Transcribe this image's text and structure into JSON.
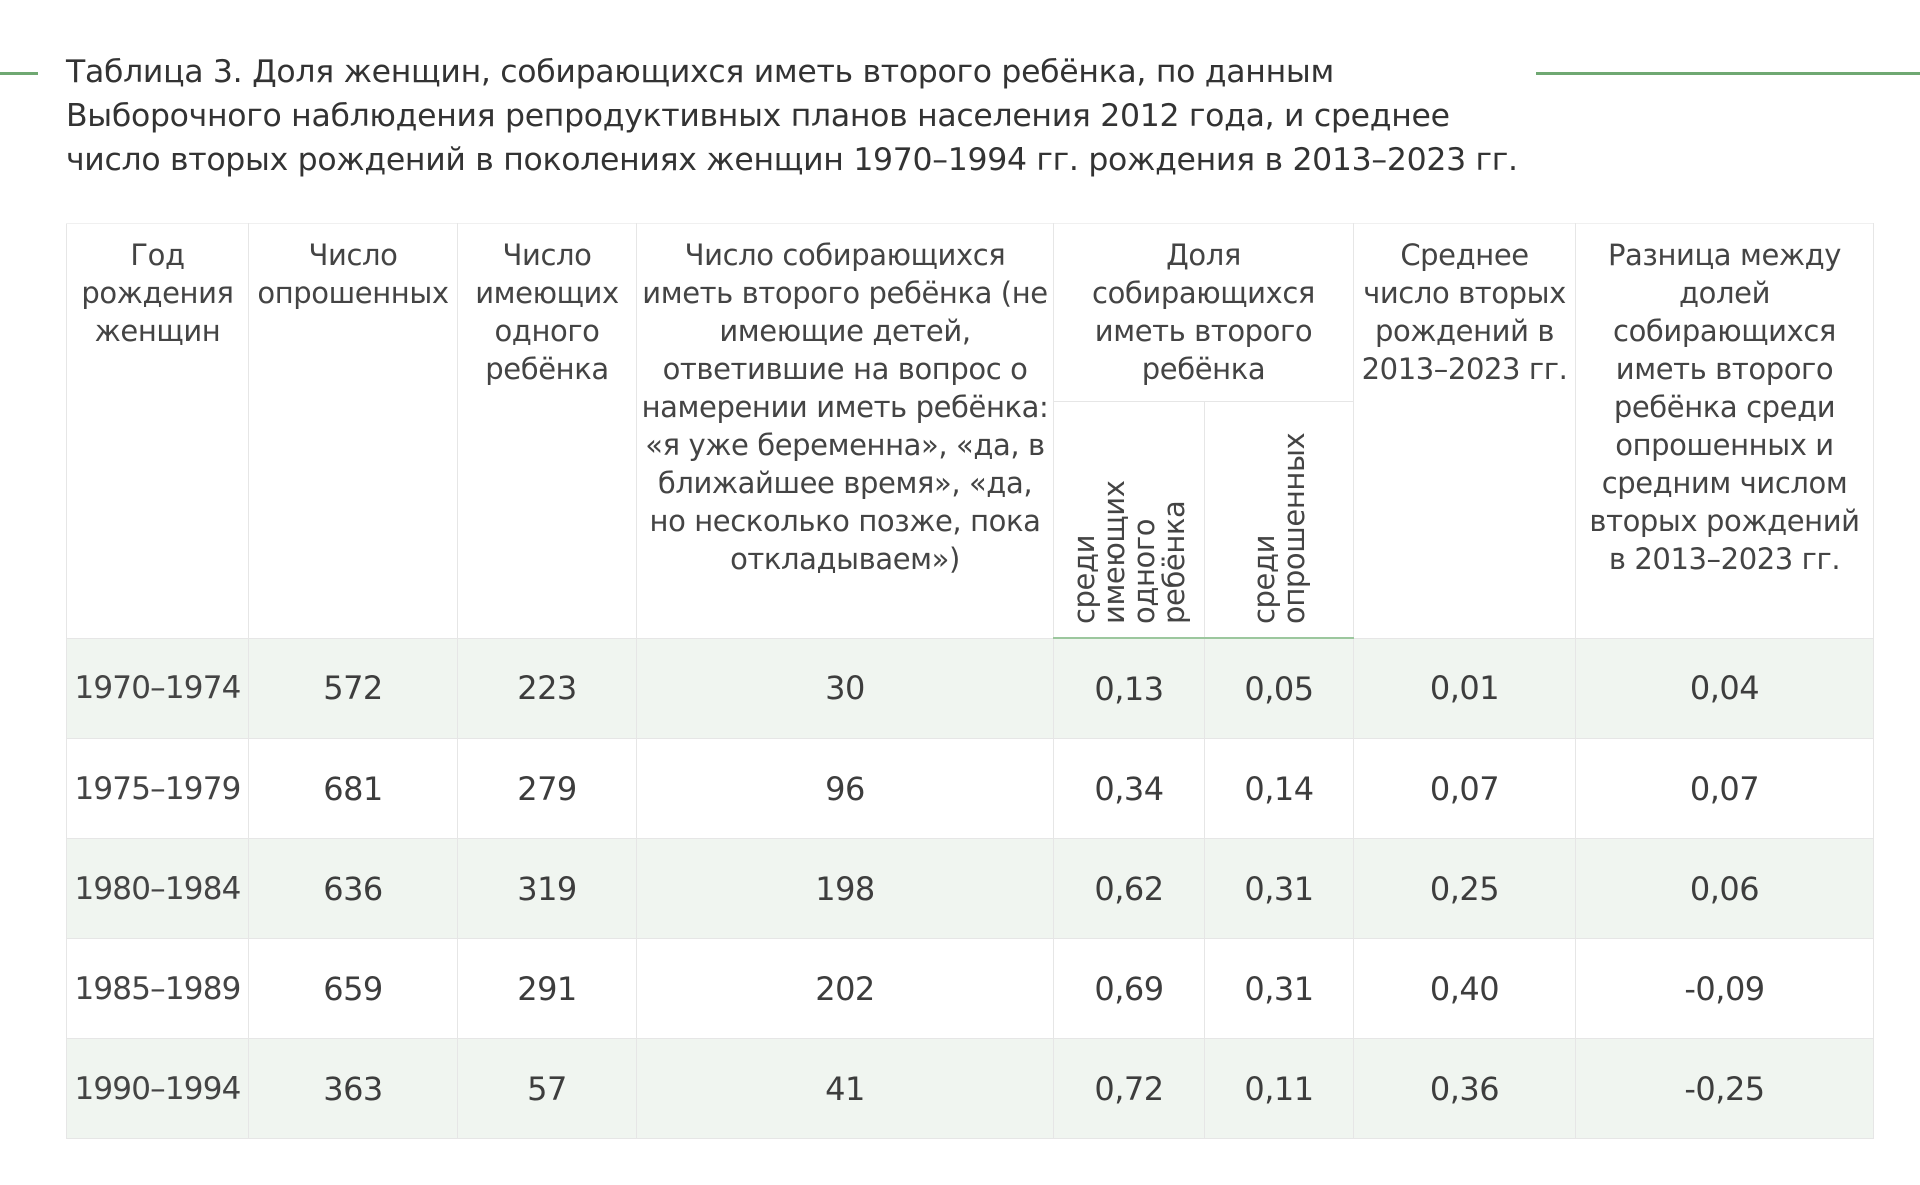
{
  "title": "Таблица 3. Доля женщин, собирающихся иметь второго ребёнка, по данным Выборочного наблюдения репродуктивных планов населения 2012 года, и среднее число вторых рождений в поколениях женщин 1970–1994 гг. рождения в 2013–2023 гг.",
  "colors": {
    "accent": "#6fa872",
    "row_shade": "#f0f5f0",
    "header_rule": "#9cc79e"
  },
  "table": {
    "headers": {
      "birth_year": "Год рождения женщин",
      "surveyed": "Число опрошенных",
      "one_child": "Число имеющих одного ребёнка",
      "intend": "Число собирающихся иметь второго ребёнка (не имеющие детей, ответившие на вопрос о намерении иметь ребёнка: «я уже беременна», «да, в ближайшее время», «да, но несколько позже, пока откладываем»)",
      "share": "Доля собирающихся иметь второго ребёнка",
      "share_among_one": "среди имеющих одного ребёнка",
      "share_among_surveyed": "среди опрошенных",
      "avg_second": "Среднее число вторых рождений в 2013–2023 гг.",
      "difference": "Разница между долей собирающихся иметь второго ребёнка среди опрошенных и средним числом вторых рождений в 2013–2023 гг."
    },
    "rows": [
      [
        "1970–1974",
        "572",
        "223",
        "30",
        "0,13",
        "0,05",
        "0,01",
        "0,04"
      ],
      [
        "1975–1979",
        "681",
        "279",
        "96",
        "0,34",
        "0,14",
        "0,07",
        "0,07"
      ],
      [
        "1980–1984",
        "636",
        "319",
        "198",
        "0,62",
        "0,31",
        "0,25",
        "0,06"
      ],
      [
        "1985–1989",
        "659",
        "291",
        "202",
        "0,69",
        "0,31",
        "0,40",
        "-0,09"
      ],
      [
        "1990–1994",
        "363",
        "57",
        "41",
        "0,72",
        "0,11",
        "0,36",
        "-0,25"
      ]
    ]
  }
}
